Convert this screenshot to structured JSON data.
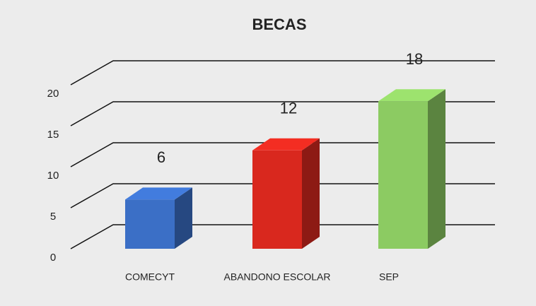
{
  "chart_data": {
    "type": "bar3d",
    "title": "BECAS",
    "categories": [
      "COMECYT",
      "ABANDONO ESCOLAR",
      "SEP"
    ],
    "values": [
      6,
      12,
      18
    ],
    "colors": [
      "#3b6fc6",
      "#d9281e",
      "#8ccb62"
    ],
    "ylim": [
      0,
      20
    ],
    "yticks": [
      0,
      5,
      10,
      15,
      20
    ],
    "grid": true
  }
}
